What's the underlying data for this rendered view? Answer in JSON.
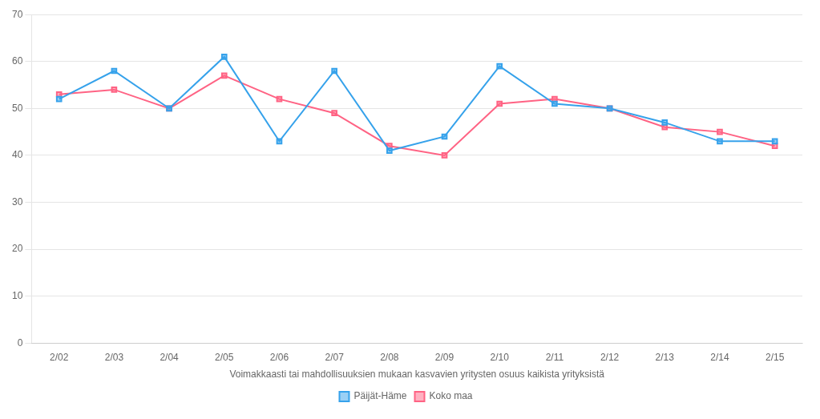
{
  "chart_data": {
    "type": "line",
    "xlabel": "Voimakkaasti tai mahdollisuuksien mukaan kasvavien yritysten osuus kaikista yrityksistä",
    "categories": [
      "2/02",
      "2/03",
      "2/04",
      "2/05",
      "2/06",
      "2/07",
      "2/08",
      "2/09",
      "2/10",
      "2/11",
      "2/12",
      "2/13",
      "2/14",
      "2/15"
    ],
    "series": [
      {
        "name": "Päijät-Häme",
        "values": [
          52,
          58,
          50,
          61,
          43,
          58,
          41,
          44,
          59,
          51,
          50,
          47,
          43,
          43
        ]
      },
      {
        "name": "Koko maa",
        "values": [
          53,
          54,
          50,
          57,
          52,
          49,
          42,
          40,
          51,
          52,
          50,
          46,
          45,
          42
        ]
      }
    ],
    "ylim": [
      0,
      70
    ],
    "yticks": [
      0,
      10,
      20,
      30,
      40,
      50,
      60,
      70
    ],
    "grid": "y",
    "legend": "bottom",
    "marker": "square",
    "line_style": "solid"
  }
}
